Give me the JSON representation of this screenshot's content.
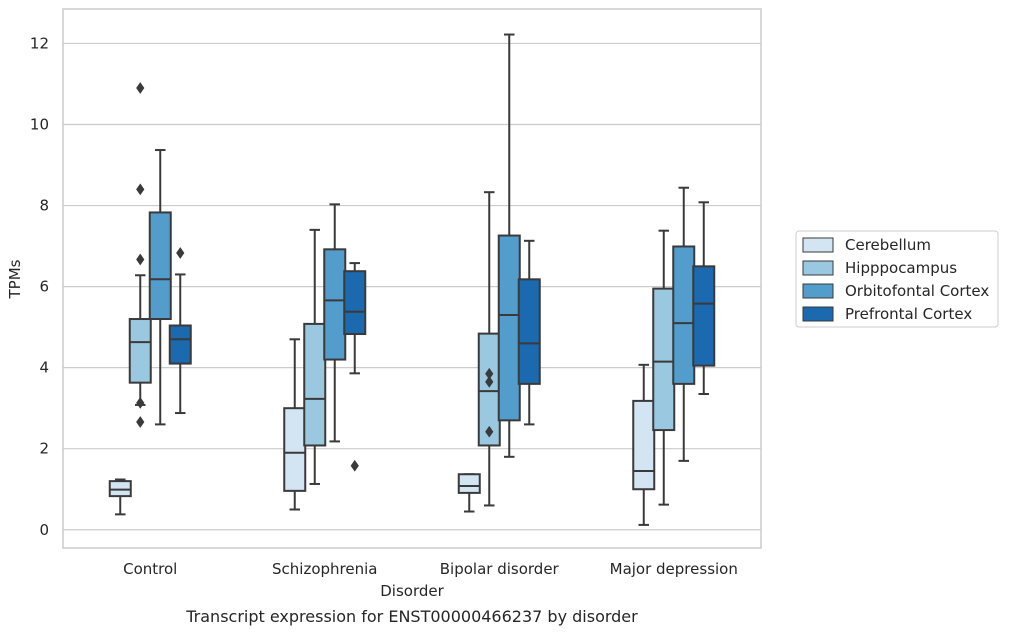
{
  "caption": "Transcript expression for ENST00000466237 by disorder",
  "chart_data": {
    "type": "boxplot",
    "xlabel": "Disorder",
    "ylabel": "TPMs",
    "ylim": [
      -0.45,
      12.85
    ],
    "yticks": [
      0,
      2,
      4,
      6,
      8,
      10,
      12
    ],
    "grid": "horizontal",
    "legend_position": "right",
    "categories": [
      "Control",
      "Schizophrenia",
      "Bipolar disorder",
      "Major depression"
    ],
    "series": [
      {
        "name": "Cerebellum",
        "color": "#d3e4f3",
        "boxes": [
          {
            "whislo": 0.38,
            "q1": 0.83,
            "med": 0.99,
            "q3": 1.2,
            "whishi": 1.24,
            "fliers": []
          },
          {
            "whislo": 0.5,
            "q1": 0.96,
            "med": 1.9,
            "q3": 3.0,
            "whishi": 4.7,
            "fliers": []
          },
          {
            "whislo": 0.45,
            "q1": 0.91,
            "med": 1.08,
            "q3": 1.37,
            "whishi": 1.37,
            "fliers": []
          },
          {
            "whislo": 0.12,
            "q1": 1.0,
            "med": 1.45,
            "q3": 3.18,
            "whishi": 4.07,
            "fliers": []
          }
        ]
      },
      {
        "name": "Hipppocampus",
        "color": "#9ac8e0",
        "boxes": [
          {
            "whislo": 3.08,
            "q1": 3.63,
            "med": 4.63,
            "q3": 5.2,
            "whishi": 6.28,
            "fliers": [
              6.67,
              8.4,
              10.9,
              3.13,
              2.66
            ]
          },
          {
            "whislo": 1.13,
            "q1": 2.08,
            "med": 3.23,
            "q3": 5.08,
            "whishi": 7.4,
            "fliers": []
          },
          {
            "whislo": 0.6,
            "q1": 2.08,
            "med": 3.42,
            "q3": 4.84,
            "whishi": 8.33,
            "fliers": [
              3.85,
              3.65,
              2.42
            ]
          },
          {
            "whislo": 0.62,
            "q1": 2.46,
            "med": 4.15,
            "q3": 5.95,
            "whishi": 7.38,
            "fliers": []
          }
        ]
      },
      {
        "name": "Orbitofontal Cortex",
        "color": "#529dcc",
        "boxes": [
          {
            "whislo": 2.6,
            "q1": 5.2,
            "med": 6.18,
            "q3": 7.83,
            "whishi": 9.37,
            "fliers": []
          },
          {
            "whislo": 2.18,
            "q1": 4.2,
            "med": 5.66,
            "q3": 6.92,
            "whishi": 8.03,
            "fliers": []
          },
          {
            "whislo": 1.8,
            "q1": 2.7,
            "med": 5.3,
            "q3": 7.26,
            "whishi": 12.22,
            "fliers": []
          },
          {
            "whislo": 1.7,
            "q1": 3.6,
            "med": 5.1,
            "q3": 6.99,
            "whishi": 8.44,
            "fliers": []
          }
        ]
      },
      {
        "name": "Prefrontal Cortex",
        "color": "#1b69af",
        "boxes": [
          {
            "whislo": 2.88,
            "q1": 4.1,
            "med": 4.7,
            "q3": 5.04,
            "whishi": 6.3,
            "fliers": [
              6.83
            ]
          },
          {
            "whislo": 3.86,
            "q1": 4.83,
            "med": 5.38,
            "q3": 6.38,
            "whishi": 6.58,
            "fliers": [
              1.58
            ]
          },
          {
            "whislo": 2.6,
            "q1": 3.6,
            "med": 4.6,
            "q3": 6.18,
            "whishi": 7.13,
            "fliers": []
          },
          {
            "whislo": 3.35,
            "q1": 4.05,
            "med": 5.58,
            "q3": 6.5,
            "whishi": 8.08,
            "fliers": []
          }
        ]
      }
    ]
  }
}
